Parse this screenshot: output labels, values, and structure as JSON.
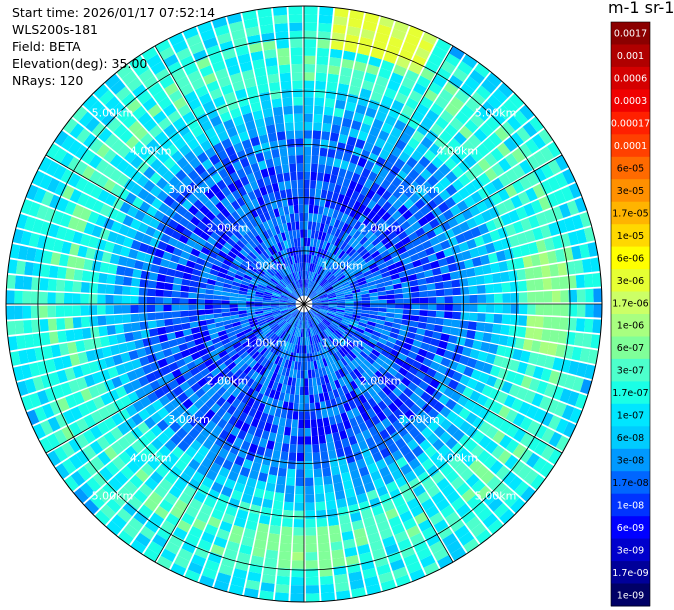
{
  "header": {
    "start_time": "Start time: 2026/01/17 07:52:14",
    "instrument": "WLS200s-181",
    "field": "Field: BETA",
    "elevation": "Elevation(deg): 35.00",
    "nrays": "NRays: 120"
  },
  "colorbar": {
    "title": "m-1 sr-1",
    "labels": [
      "0.0017",
      "0.001",
      "0.0006",
      "0.0003",
      "0.00017",
      "0.0001",
      "6e-05",
      "3e-05",
      "1.7e-05",
      "1e-05",
      "6e-06",
      "3e-06",
      "1.7e-06",
      "1e-06",
      "6e-07",
      "3e-07",
      "1.7e-07",
      "1e-07",
      "6e-08",
      "3e-08",
      "1.7e-08",
      "1e-08",
      "6e-09",
      "3e-09",
      "1.7e-09",
      "1e-09"
    ],
    "colors": [
      "#8b0000",
      "#b00000",
      "#d40000",
      "#f00000",
      "#ff2000",
      "#ff4000",
      "#ff6a00",
      "#ff9000",
      "#ffb400",
      "#ffd800",
      "#ffff00",
      "#e6ff33",
      "#ccff66",
      "#a8ff80",
      "#80ff99",
      "#4dffcc",
      "#1affe6",
      "#00e6ff",
      "#00ccff",
      "#0099ff",
      "#0066ff",
      "#0033ff",
      "#0000ff",
      "#0000cc",
      "#000099",
      "#000066"
    ]
  },
  "chart_data": {
    "type": "polar_scan",
    "field": "BETA",
    "units": "m-1 sr-1",
    "elevation_deg": 35.0,
    "n_rays": 120,
    "range_rings_km": [
      1.0,
      2.0,
      3.0,
      4.0,
      5.0
    ],
    "range_ring_labels": [
      "1.00km",
      "2.00km",
      "3.00km",
      "4.00km",
      "5.00km"
    ],
    "max_range_km": 5.6,
    "radial_profile": [
      {
        "range_km": 0.5,
        "log10_beta": -7.8
      },
      {
        "range_km": 1.0,
        "log10_beta": -7.8
      },
      {
        "range_km": 1.5,
        "log10_beta": -7.85
      },
      {
        "range_km": 2.0,
        "log10_beta": -7.9
      },
      {
        "range_km": 2.5,
        "log10_beta": -7.9
      },
      {
        "range_km": 3.0,
        "log10_beta": -7.7
      },
      {
        "range_km": 3.5,
        "log10_beta": -7.3
      },
      {
        "range_km": 4.0,
        "log10_beta": -6.9
      },
      {
        "range_km": 4.5,
        "log10_beta": -6.6
      },
      {
        "range_km": 5.0,
        "log10_beta": -6.7
      },
      {
        "range_km": 5.5,
        "log10_beta": -7.0
      }
    ],
    "features": [
      {
        "azimuth_deg": 15,
        "range_km": 5.2,
        "log10_beta": -5.6
      },
      {
        "azimuth_deg": 88,
        "range_km": 4.6,
        "log10_beta": -6.2
      },
      {
        "azimuth_deg": 180,
        "range_km": 4.6,
        "log10_beta": -6.3
      }
    ]
  }
}
